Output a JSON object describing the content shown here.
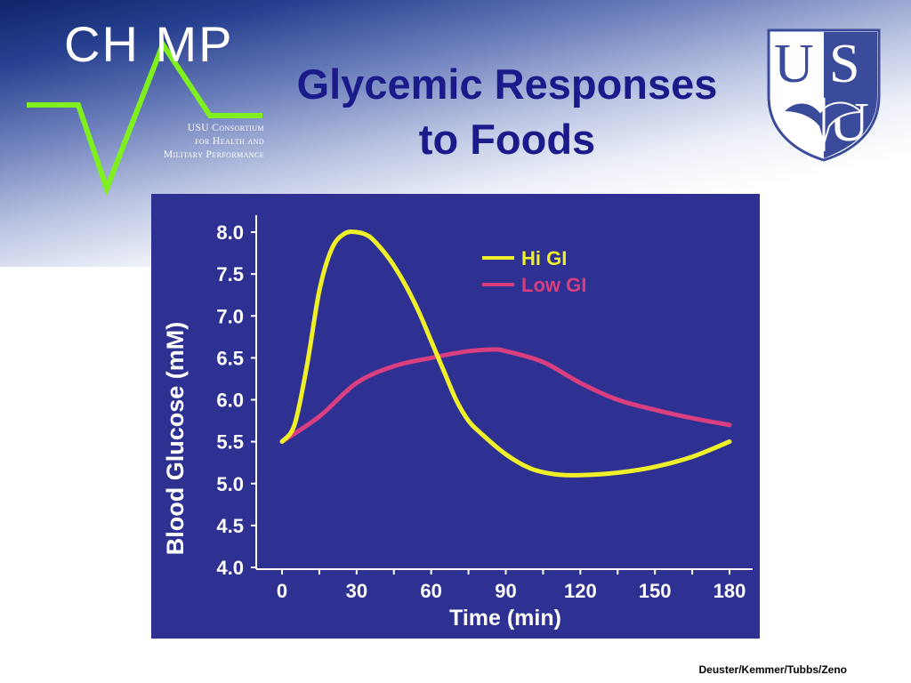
{
  "slide": {
    "title_lines": [
      "Glycemic Responses",
      "to Foods"
    ],
    "footer": "Deuster/Kemmer/Tubbs/Zeno"
  },
  "logo": {
    "wordmark": "CH MP",
    "subtitle_lines": [
      "USU Consortium",
      "for Health and",
      "Military Performance"
    ],
    "shield_letters": "USU",
    "colors": {
      "champ_line": "#7ff01e",
      "shield_blue": "#3a4b9c"
    }
  },
  "colors": {
    "title": "#1a1a8a",
    "panel": "#2e3192",
    "axis": "#ffffff",
    "hi_gi": "#f0f029",
    "low_gi": "#d93e7e"
  },
  "chart_data": {
    "type": "line",
    "xlabel": "Time (min)",
    "ylabel": "Blood Glucose (mM)",
    "xlim": [
      0,
      180
    ],
    "ylim": [
      4.0,
      8.0
    ],
    "xticks": [
      0,
      30,
      60,
      90,
      120,
      150,
      180
    ],
    "xtick_labels": [
      "0",
      "30",
      "60",
      "90",
      "120",
      "150",
      "180"
    ],
    "yticks": [
      4.0,
      4.5,
      5.0,
      5.5,
      6.0,
      6.5,
      7.0,
      7.5,
      8.0
    ],
    "ytick_labels": [
      "4.0",
      "4.5",
      "5.0",
      "5.5",
      "6.0",
      "6.5",
      "7.0",
      "7.5",
      "8.0"
    ],
    "grid": false,
    "legend_position": "top-right",
    "series": [
      {
        "name": "Hi GI",
        "color": "#f0f029",
        "x": [
          0,
          5,
          10,
          15,
          20,
          25,
          30,
          35,
          40,
          45,
          50,
          55,
          60,
          65,
          70,
          75,
          80,
          90,
          100,
          110,
          120,
          135,
          150,
          165,
          180
        ],
        "y": [
          5.5,
          5.7,
          6.4,
          7.3,
          7.8,
          7.98,
          8.0,
          7.95,
          7.8,
          7.6,
          7.35,
          7.05,
          6.7,
          6.35,
          6.0,
          5.75,
          5.6,
          5.35,
          5.18,
          5.11,
          5.1,
          5.13,
          5.2,
          5.32,
          5.5
        ]
      },
      {
        "name": "Low GI",
        "color": "#d93e7e",
        "x": [
          0,
          15,
          30,
          45,
          60,
          75,
          85,
          90,
          105,
          120,
          135,
          150,
          165,
          180
        ],
        "y": [
          5.5,
          5.8,
          6.2,
          6.4,
          6.5,
          6.58,
          6.6,
          6.58,
          6.45,
          6.2,
          6.0,
          5.88,
          5.78,
          5.7
        ]
      }
    ]
  }
}
